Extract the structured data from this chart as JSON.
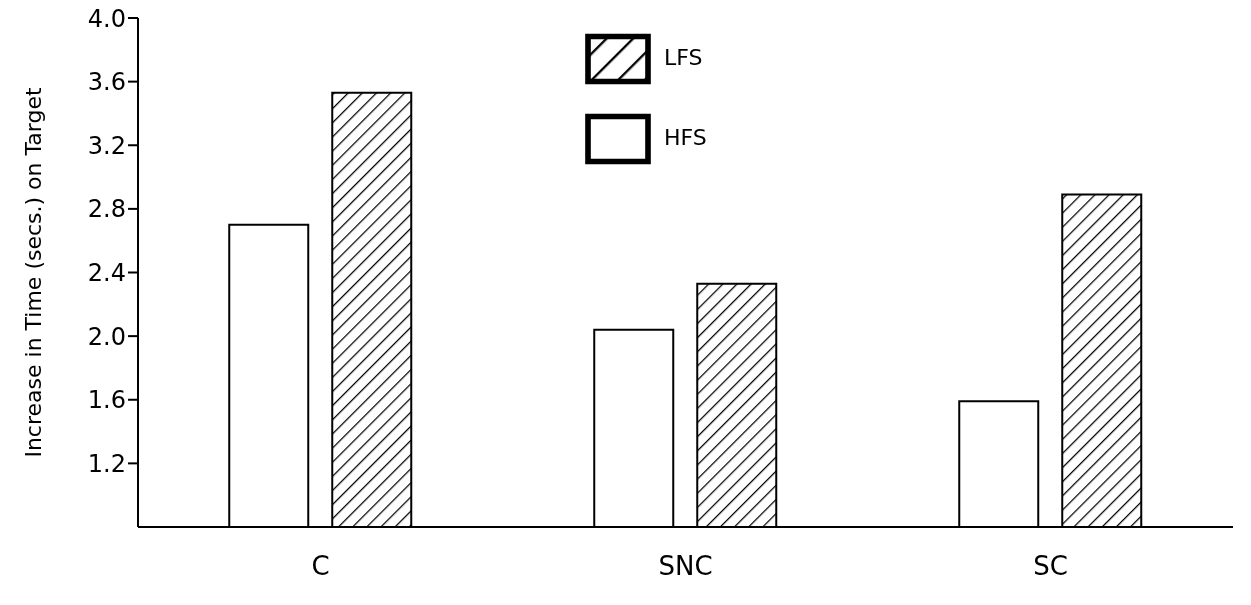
{
  "chart_data": {
    "type": "bar",
    "ylabel": "Increase in Time (secs.) on Target",
    "categories": [
      "C",
      "SNC",
      "SC"
    ],
    "series": [
      {
        "name": "HFS",
        "color": "#ffffff",
        "values": [
          2.7,
          2.04,
          1.59
        ]
      },
      {
        "name": "LFS",
        "color": "#000000",
        "values": [
          3.53,
          2.33,
          2.89
        ]
      }
    ],
    "ylim": [
      0.8,
      4.0
    ],
    "yticks": [
      1.2,
      1.6,
      {
        "value": 2,
        "label": "2.0"
      },
      2.4,
      2.8,
      3.2,
      3.6,
      {
        "value": 4,
        "label": "4.0"
      }
    ],
    "grid": false,
    "legend": "top"
  }
}
